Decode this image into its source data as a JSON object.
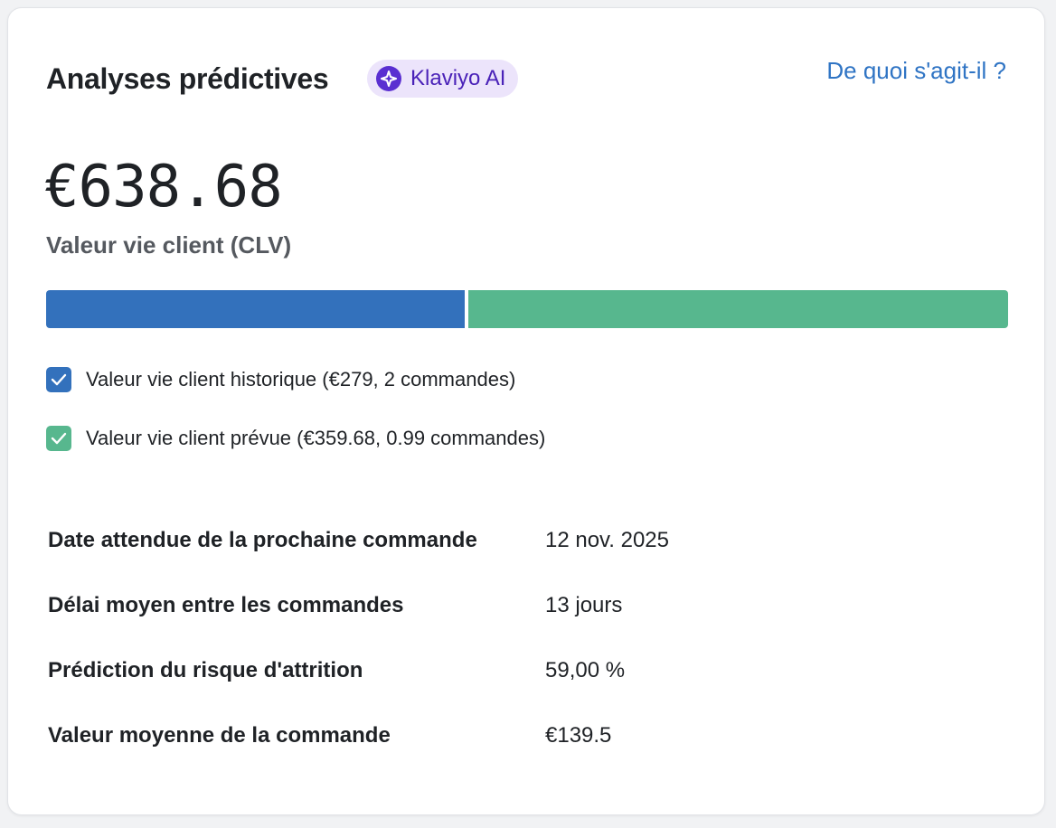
{
  "header": {
    "title": "Analyses prédictives",
    "badge_label": "Klaviyo AI",
    "help_link": "De quoi s'agit-il ?"
  },
  "clv": {
    "value": "€638.68",
    "label": "Valeur vie client (CLV)"
  },
  "progress": {
    "historical_value": 279,
    "predicted_value": 359.68,
    "historical_color": "#3371bc",
    "predicted_color": "#57b78e"
  },
  "legend": [
    {
      "label": "Valeur vie client historique (€279, 2 commandes)",
      "checked": true,
      "color": "#3371bc"
    },
    {
      "label": "Valeur vie client prévue (€359.68, 0.99 commandes)",
      "checked": true,
      "color": "#57b78e"
    }
  ],
  "stats": [
    {
      "label": "Date attendue de la prochaine commande",
      "value": "12 nov. 2025"
    },
    {
      "label": "Délai moyen entre les commandes",
      "value": "13 jours"
    },
    {
      "label": "Prédiction du risque d'attrition",
      "value": "59,00 %"
    },
    {
      "label": "Valeur moyenne de la commande",
      "value": "€139.5"
    }
  ]
}
